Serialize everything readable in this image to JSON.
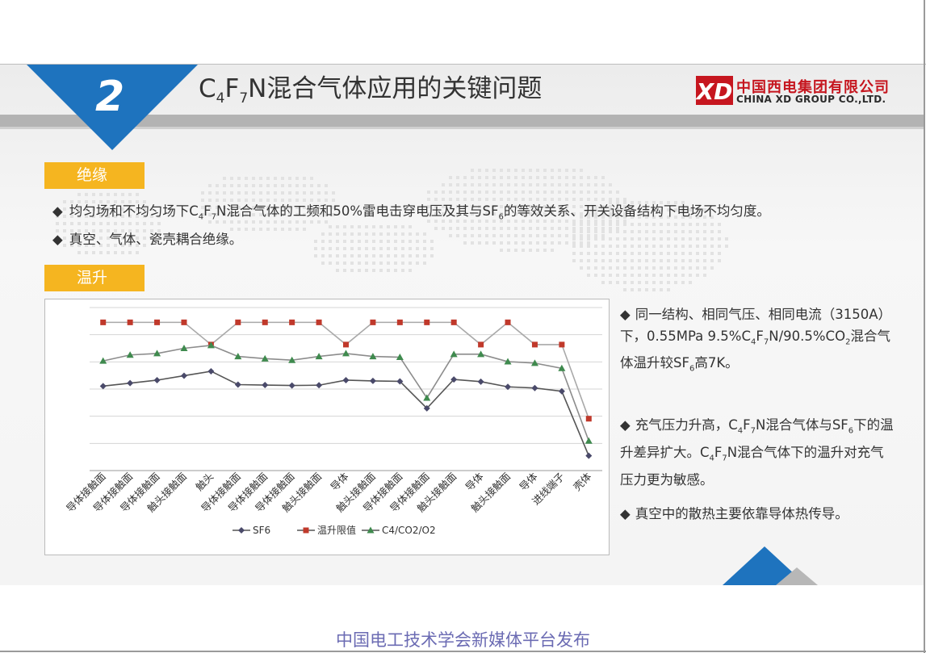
{
  "header": {
    "number": "2",
    "title_parts": [
      "C",
      "4",
      "F",
      "7",
      "N混合气体应用的关键问题"
    ]
  },
  "logo": {
    "mark": "XD",
    "cn": "中国西电集团有限公司",
    "en": "CHINA XD GROUP CO.,LTD."
  },
  "sections": {
    "insulation": {
      "label": "绝缘",
      "bullets": [
        {
          "parts": [
            "均匀场和不均匀场下C",
            "4",
            "F",
            "7",
            "N混合气体的工频和50%雷电击穿电压及其与SF",
            "6",
            "的等效关系、开关设备结构下电场不均匀度。"
          ]
        },
        {
          "parts": [
            "真空、气体、瓷壳耦合绝缘。"
          ]
        }
      ]
    },
    "temperature": {
      "label": "温升",
      "notes": [
        {
          "parts": [
            "同一结构、相同气压、相同电流（3150A）下，0.55MPa 9.5%C",
            "4",
            "F",
            "7",
            "N/90.5%CO",
            "2",
            "混合气体温升较SF",
            "6",
            "高7K。"
          ]
        },
        {
          "parts": [
            "充气压力升高，C",
            "4",
            "F",
            "7",
            "N混合气体与SF",
            "6",
            "下的温升差异扩大。C",
            "4",
            "F",
            "7",
            "N混合气体下的温升对充气压力更为敏感。"
          ]
        },
        {
          "parts": [
            "真空中的散热主要依靠导体热传导。"
          ]
        }
      ]
    }
  },
  "chart_data": {
    "type": "line",
    "categories": [
      "导体接触面",
      "导体接触面",
      "导体接触面",
      "触头接触面",
      "触头",
      "导体接触面",
      "导体接触面",
      "导体接触面",
      "触头接触面",
      "导体",
      "触头接触面",
      "导体接触面",
      "导体接触面",
      "触头接触面",
      "导体",
      "触头接触面",
      "导体",
      "进线端子",
      "壳体"
    ],
    "series": [
      {
        "name": "SF6",
        "color": "#4a4a6a",
        "marker": "diamond",
        "values": [
          62,
          64,
          66,
          69,
          72,
          63,
          62.7,
          62.4,
          62.6,
          66,
          65.5,
          65.2,
          47,
          66.5,
          65,
          61.5,
          60.7,
          58.5,
          15
        ]
      },
      {
        "name": "温升限值",
        "color": "#c0392b",
        "marker": "square",
        "values": [
          105,
          105,
          105,
          105,
          90,
          105,
          105,
          105,
          105,
          90,
          105,
          105,
          105,
          105,
          90,
          105,
          90,
          90,
          40
        ]
      },
      {
        "name": "C4/CO2/O2",
        "color": "#3f8a4e",
        "marker": "triangle",
        "values": [
          79,
          83,
          84,
          87.5,
          89.5,
          82,
          80.5,
          79.5,
          82,
          84,
          82,
          81.5,
          54,
          83.5,
          83.5,
          78.5,
          77.5,
          74,
          25
        ]
      }
    ],
    "ylim": [
      5,
      115
    ],
    "grid": true,
    "legend": "bottom",
    "colors": {
      "grid": "#d4d4d4",
      "axis": "#9a9a9a"
    }
  },
  "footer": "中国电工技术学会新媒体平台发布"
}
